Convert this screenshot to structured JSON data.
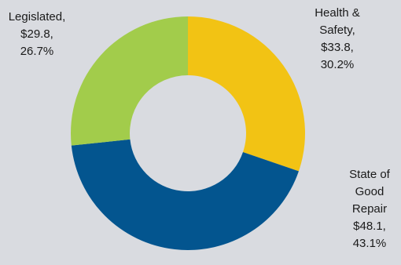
{
  "chart_data": {
    "type": "pie",
    "variant": "donut",
    "slices": [
      {
        "label": "Health & Safety",
        "value": 33.8,
        "percent": 30.2,
        "color": "#f2c314",
        "label_lines": [
          "Health &",
          "Safety,",
          "$33.8,",
          "30.2%"
        ]
      },
      {
        "label": "State of Good Repair",
        "value": 48.1,
        "percent": 43.1,
        "color": "#03558f",
        "label_lines": [
          "State of",
          "Good",
          "Repair",
          "$48.1,",
          "43.1%"
        ]
      },
      {
        "label": "Legislated",
        "value": 29.8,
        "percent": 26.7,
        "color": "#a2cc4b",
        "label_lines": [
          "Legislated,",
          "$29.8,",
          "26.7%"
        ]
      }
    ]
  }
}
